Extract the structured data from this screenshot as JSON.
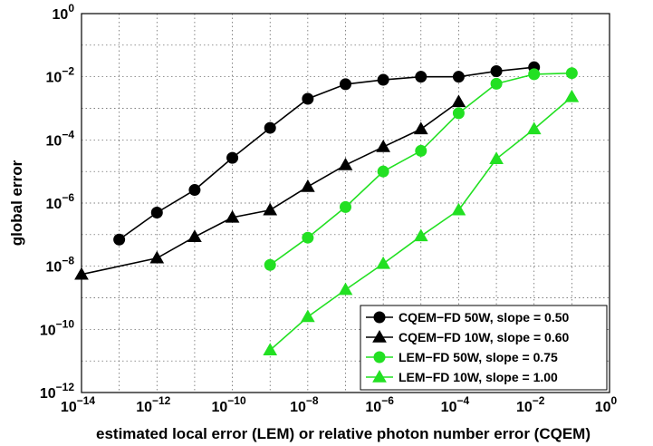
{
  "chart_data": {
    "type": "line",
    "xscale": "log",
    "yscale": "log",
    "xlim": [
      1e-14,
      1
    ],
    "ylim": [
      1e-12,
      1
    ],
    "grid": true,
    "legend_position": "bottom-right",
    "xlabel": "estimated local error (LEM) or relative photon number error (CQEM)",
    "ylabel": "global error",
    "x_ticks": [
      {
        "base": "10",
        "exp": "−14"
      },
      {
        "base": "10",
        "exp": "−12"
      },
      {
        "base": "10",
        "exp": "−10"
      },
      {
        "base": "10",
        "exp": "−8"
      },
      {
        "base": "10",
        "exp": "−6"
      },
      {
        "base": "10",
        "exp": "−4"
      },
      {
        "base": "10",
        "exp": "−2"
      },
      {
        "base": "10",
        "exp": "0"
      }
    ],
    "y_ticks": [
      {
        "base": "10",
        "exp": "−12"
      },
      {
        "base": "10",
        "exp": "−10"
      },
      {
        "base": "10",
        "exp": "−8"
      },
      {
        "base": "10",
        "exp": "−6"
      },
      {
        "base": "10",
        "exp": "−4"
      },
      {
        "base": "10",
        "exp": "−2"
      },
      {
        "base": "10",
        "exp": "0"
      }
    ],
    "series": [
      {
        "name": "CQEM−FD 50W, slope = 0.50",
        "color": "#000000",
        "marker": "circle",
        "x": [
          1e-13,
          1e-12,
          1e-11,
          1e-10,
          1e-09,
          1e-08,
          1e-07,
          1e-06,
          1e-05,
          0.0001,
          0.001,
          0.01
        ],
        "y": [
          7e-08,
          5e-07,
          2.6e-06,
          2.7e-05,
          0.00024,
          0.002,
          0.0058,
          0.008,
          0.01,
          0.01,
          0.015,
          0.02
        ]
      },
      {
        "name": "CQEM−FD 10W, slope = 0.60",
        "color": "#000000",
        "marker": "triangle",
        "x": [
          1e-14,
          1e-12,
          1e-11,
          1e-10,
          1e-09,
          1e-08,
          1e-07,
          1e-06,
          1e-05,
          0.0001
        ],
        "y": [
          5.5e-09,
          1.8e-08,
          8.5e-08,
          3.5e-07,
          6e-07,
          3.3e-06,
          1.6e-05,
          6e-05,
          0.00022,
          0.0016
        ]
      },
      {
        "name": "LEM−FD 50W, slope = 0.75",
        "color": "#22e022",
        "marker": "circle",
        "x": [
          1e-09,
          1e-08,
          1e-07,
          1e-06,
          1e-05,
          0.0001,
          0.001,
          0.01,
          0.1
        ],
        "y": [
          1.1e-08,
          8e-08,
          7.5e-07,
          1e-05,
          4.5e-05,
          0.0007,
          0.006,
          0.012,
          0.013
        ]
      },
      {
        "name": "LEM−FD 10W, slope = 1.00",
        "color": "#22e022",
        "marker": "triangle",
        "x": [
          1e-09,
          1e-08,
          1e-07,
          1e-06,
          1e-05,
          0.0001,
          0.001,
          0.01,
          0.1
        ],
        "y": [
          2.2e-11,
          2.5e-10,
          1.8e-09,
          1.2e-08,
          9e-08,
          6e-07,
          2.5e-05,
          0.00022,
          0.0023
        ]
      }
    ]
  }
}
